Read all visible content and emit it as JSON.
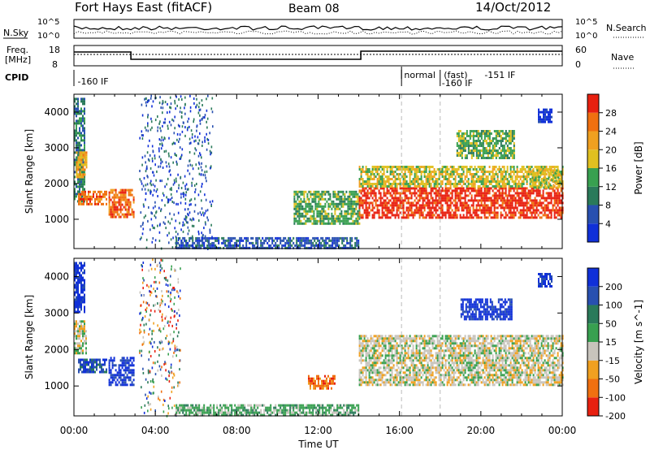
{
  "header": {
    "radar": "Fort Hays East (fitACF)",
    "beam": "Beam 08",
    "date": "14/Oct/2012"
  },
  "strip_labels": {
    "nsky": "N.Sky",
    "nsearch": "N.Search",
    "freq_line1": "Freq.",
    "freq_line2": "[MHz]",
    "nave": "Nave",
    "cpid": "CPID"
  },
  "strip_ticks": {
    "noise_top": "10^5",
    "noise_bottom": "10^0",
    "freq_top": "18",
    "freq_bottom": "8",
    "nave_top": "60",
    "nave_bottom": "0"
  },
  "cpid_labels": [
    {
      "text": "-160 IF",
      "hour": 0.1,
      "row": 0
    },
    {
      "text": "normal",
      "hour": 16.15,
      "row": 1
    },
    {
      "text": "(fast)",
      "hour": 18.1,
      "row": 1
    },
    {
      "text": "-151 IF",
      "hour": 20.1,
      "row": 1
    },
    {
      "text": "-160 IF",
      "hour": 18.0,
      "row": 2
    }
  ],
  "colors": {
    "power": [
      "#1030d8",
      "#2850b0",
      "#2a7a5a",
      "#38a050",
      "#e0c020",
      "#f0a020",
      "#f07010",
      "#e82010"
    ],
    "velocity": [
      "#1030d8",
      "#2850b0",
      "#2a7a5a",
      "#38a050",
      "#c8c4bc",
      "#f0a020",
      "#f07010",
      "#e82010"
    ],
    "ground_scatter": "#c8c4bc"
  },
  "chart_data": [
    {
      "type": "heatmap",
      "panel": "power",
      "ylabel": "Slant Range [km]",
      "xlabel": "",
      "x_range_hours": [
        0,
        24
      ],
      "ylim": [
        180,
        4500
      ],
      "y_ticks": [
        1000,
        2000,
        3000,
        4000
      ],
      "colorbar": {
        "label": "Power [dB]",
        "ticks": [
          "4",
          "8",
          "12",
          "16",
          "20",
          "24",
          "28"
        ],
        "range": [
          0,
          32
        ]
      },
      "regions": [
        {
          "t": [
            0.0,
            0.5
          ],
          "r": [
            1500,
            4400
          ],
          "level": 2
        },
        {
          "t": [
            0.1,
            0.6
          ],
          "r": [
            2200,
            2900
          ],
          "level": 5
        },
        {
          "t": [
            0.2,
            1.6
          ],
          "r": [
            1450,
            1800
          ],
          "level": 6
        },
        {
          "t": [
            1.7,
            2.9
          ],
          "r": [
            1050,
            1850
          ],
          "level": 6
        },
        {
          "t": [
            3.2,
            6.8
          ],
          "r": [
            200,
            4500
          ],
          "level": 0,
          "sparse": true
        },
        {
          "t": [
            5.0,
            14.0
          ],
          "r": [
            200,
            500
          ],
          "level": 1
        },
        {
          "t": [
            10.8,
            14.0
          ],
          "r": [
            900,
            1800
          ],
          "level": 3
        },
        {
          "t": [
            14.0,
            24.0
          ],
          "r": [
            1050,
            1900
          ],
          "level": 7
        },
        {
          "t": [
            14.0,
            24.0
          ],
          "r": [
            1900,
            2500
          ],
          "level": 4
        },
        {
          "t": [
            18.8,
            21.6
          ],
          "r": [
            2700,
            3500
          ],
          "level": 3
        },
        {
          "t": [
            22.5,
            23.9
          ],
          "r": [
            1900,
            2400
          ],
          "level": 4
        },
        {
          "t": [
            22.8,
            23.5
          ],
          "r": [
            3700,
            4100
          ],
          "level": 0
        }
      ]
    },
    {
      "type": "heatmap",
      "panel": "velocity",
      "ylabel": "Slant Range [km]",
      "xlabel": "Time UT",
      "x_range_hours": [
        0,
        24
      ],
      "ylim": [
        180,
        4500
      ],
      "y_ticks": [
        1000,
        2000,
        3000,
        4000
      ],
      "x_ticks": [
        "00:00",
        "04:00",
        "08:00",
        "12:00",
        "16:00",
        "20:00",
        "00:00"
      ],
      "colorbar": {
        "label": "Velocity [m s^-1]",
        "ticks": [
          "200",
          "100",
          "50",
          "15",
          "-15",
          "-50",
          "-100",
          "-200"
        ],
        "range": [
          -250,
          250
        ]
      },
      "regions": [
        {
          "t": [
            0.0,
            0.5
          ],
          "r": [
            3000,
            4400
          ],
          "level": 0
        },
        {
          "t": [
            0.0,
            0.6
          ],
          "r": [
            1900,
            2800
          ],
          "level": 4
        },
        {
          "t": [
            0.2,
            1.6
          ],
          "r": [
            1350,
            1750
          ],
          "level": 1
        },
        {
          "t": [
            1.7,
            2.9
          ],
          "r": [
            1000,
            1800
          ],
          "level": 0
        },
        {
          "t": [
            3.2,
            5.2
          ],
          "r": [
            200,
            4500
          ],
          "level": 7,
          "sparse": true
        },
        {
          "t": [
            5.0,
            14.0
          ],
          "r": [
            200,
            500
          ],
          "level": 3
        },
        {
          "t": [
            11.5,
            12.8
          ],
          "r": [
            950,
            1300
          ],
          "level": 6
        },
        {
          "t": [
            14.0,
            24.0
          ],
          "r": [
            1050,
            2400
          ],
          "level": 4
        },
        {
          "t": [
            19.0,
            21.5
          ],
          "r": [
            2800,
            3400
          ],
          "level": 0
        },
        {
          "t": [
            22.8,
            23.5
          ],
          "r": [
            3700,
            4100
          ],
          "level": 0
        }
      ]
    }
  ]
}
